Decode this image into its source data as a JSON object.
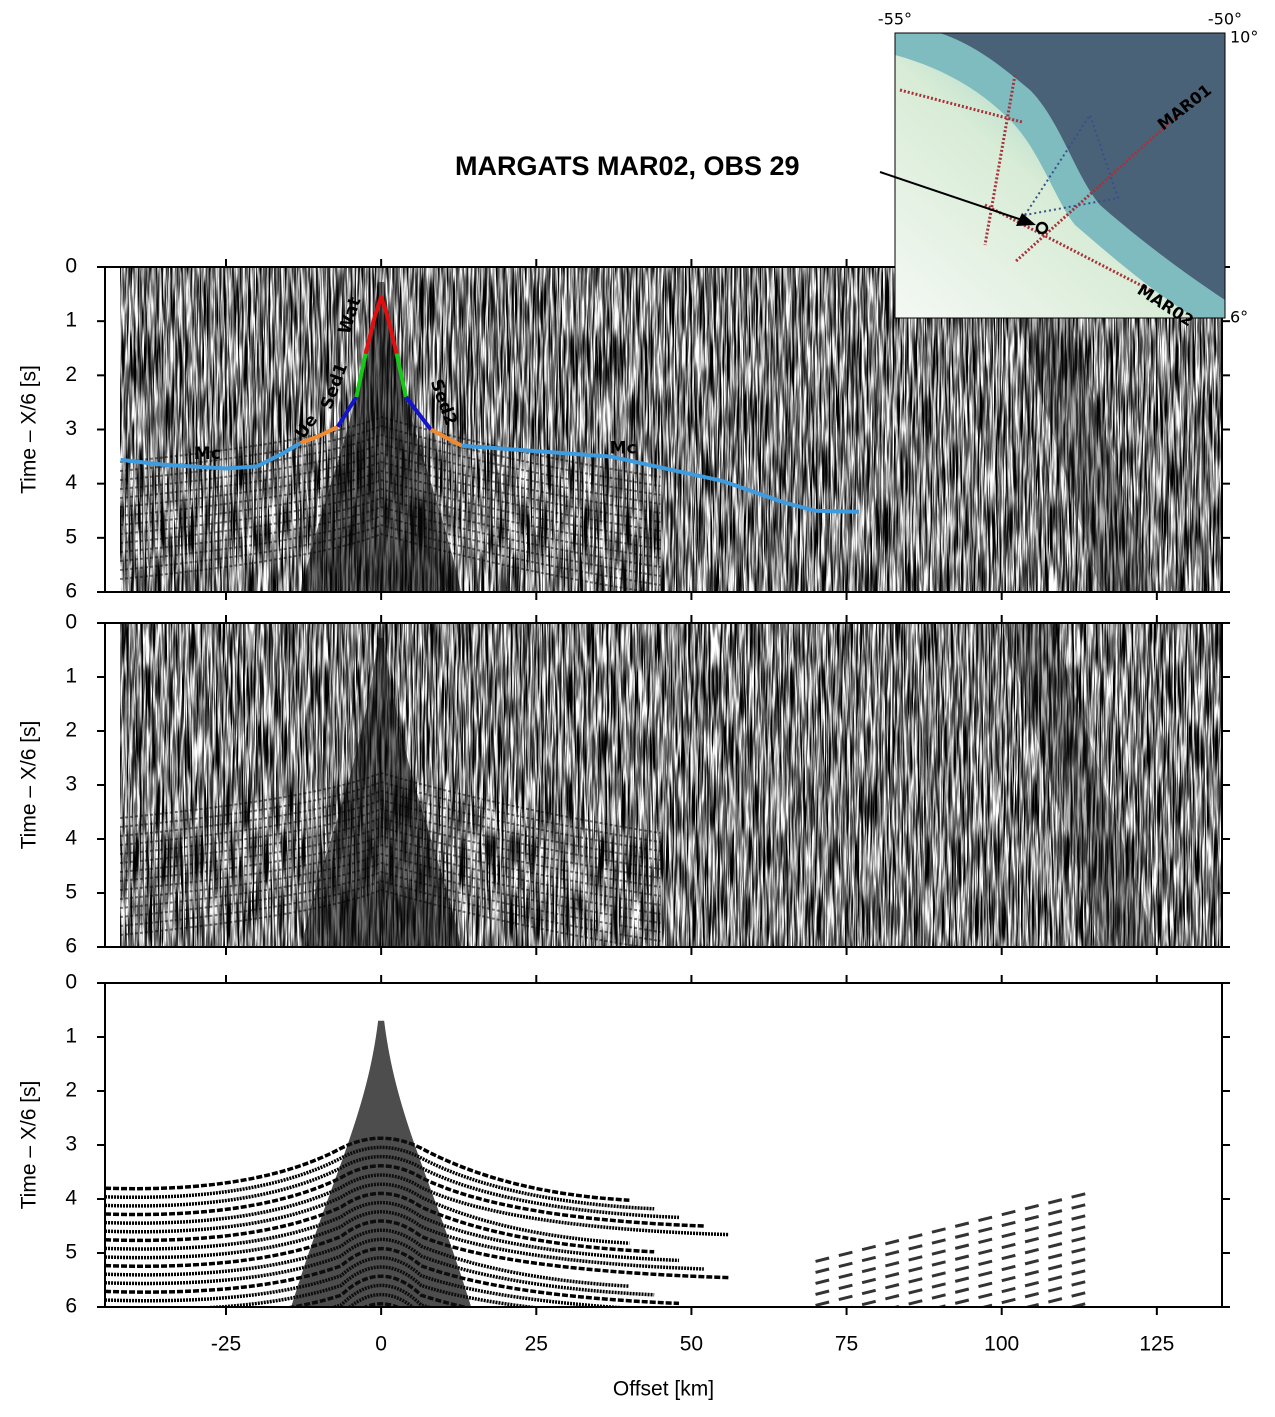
{
  "chart_data": [
    {
      "type": "line",
      "title": "MARGATS MAR02, OBS 29",
      "ylabel": "Time – X/6 [s]",
      "xlim": [
        -44.5,
        135.5
      ],
      "ylim": [
        6,
        0
      ],
      "yticks": [
        0,
        1,
        2,
        3,
        4,
        5,
        6
      ],
      "xticks": [
        -25,
        0,
        25,
        50,
        75,
        100,
        125
      ],
      "series": [
        {
          "color": "#3d9be0",
          "x": [
            -42,
            -35,
            -25,
            -20,
            -16,
            -13
          ],
          "values": [
            3.56,
            3.65,
            3.72,
            3.68,
            3.45,
            3.25
          ]
        },
        {
          "color": "#f08a30",
          "x": [
            -13,
            -10,
            -7
          ],
          "values": [
            3.25,
            3.12,
            2.95
          ]
        },
        {
          "color": "#1414c8",
          "x": [
            -7,
            -4
          ],
          "values": [
            2.95,
            2.4
          ]
        },
        {
          "color": "#18c818",
          "x": [
            -4,
            -2.5
          ],
          "values": [
            2.4,
            1.6
          ]
        },
        {
          "color": "#e01010",
          "x": [
            -2.5,
            -1,
            0,
            1,
            2.5
          ],
          "values": [
            1.6,
            0.9,
            0.55,
            0.9,
            1.6
          ]
        },
        {
          "color": "#18c818",
          "x": [
            2.5,
            4
          ],
          "values": [
            1.6,
            2.4
          ]
        },
        {
          "color": "#1414c8",
          "x": [
            4,
            8
          ],
          "values": [
            2.4,
            3.0
          ]
        },
        {
          "color": "#f08a30",
          "x": [
            8,
            13
          ],
          "values": [
            3.0,
            3.3
          ]
        },
        {
          "color": "#3d9be0",
          "x": [
            13,
            25,
            37,
            45,
            55,
            60,
            65,
            70,
            77
          ],
          "values": [
            3.3,
            3.4,
            3.5,
            3.7,
            3.95,
            4.15,
            4.35,
            4.5,
            4.52
          ]
        }
      ],
      "annotations": [
        {
          "text": "Mc",
          "x": -28,
          "y": 3.45
        },
        {
          "text": "Ue",
          "x": -12,
          "y": 2.95
        },
        {
          "text": "Sed1",
          "x": -7.5,
          "y": 2.2
        },
        {
          "text": "Wat",
          "x": -5,
          "y": 0.9
        },
        {
          "text": "Sed2",
          "x": 10,
          "y": 2.5
        },
        {
          "text": "Mc",
          "x": 39,
          "y": 3.35
        }
      ]
    },
    {
      "type": "line",
      "ylabel": "Time – X/6 [s]",
      "xlim": [
        -44.5,
        135.5
      ],
      "ylim": [
        6,
        0
      ],
      "yticks": [
        0,
        1,
        2,
        3,
        4,
        5,
        6
      ],
      "xticks": [
        -25,
        0,
        25,
        50,
        75,
        100,
        125
      ]
    },
    {
      "type": "line",
      "ylabel": "Time – X/6 [s]",
      "xlabel": "Offset [km]",
      "xlim": [
        -44.5,
        135.5
      ],
      "ylim": [
        6,
        0
      ],
      "yticks": [
        0,
        1,
        2,
        3,
        4,
        5,
        6
      ],
      "xticks": [
        -25,
        0,
        25,
        50,
        75,
        100,
        125
      ]
    }
  ],
  "inset_map": {
    "lon_labels": [
      "-55°",
      "-50°"
    ],
    "lat_labels": [
      "10°",
      "6°"
    ],
    "profiles": [
      "MAR01",
      "MAR02"
    ]
  }
}
